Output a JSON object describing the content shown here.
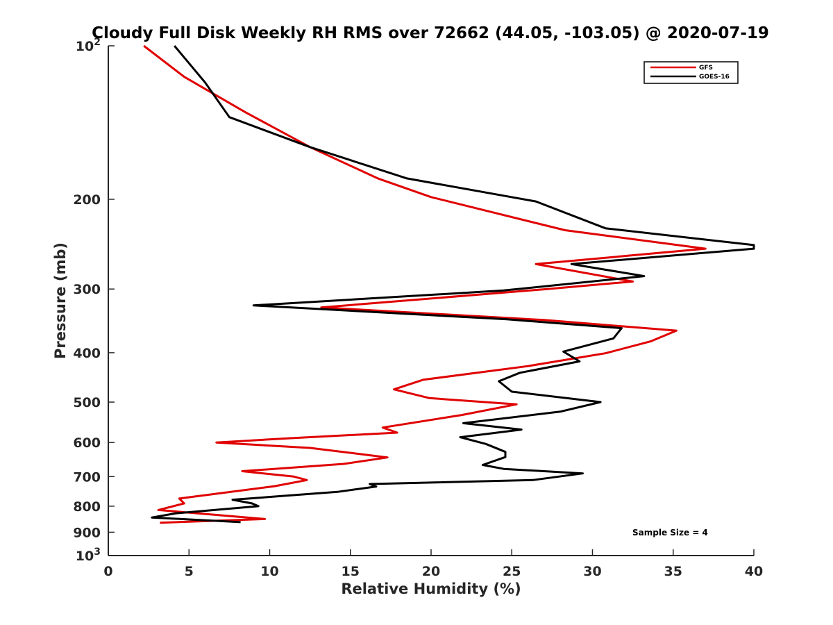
{
  "chart_data": {
    "type": "line",
    "title": "Cloudy Full Disk Weekly RH RMS over 72662 (44.05, -103.05) @ 2020-07-19",
    "xlabel": "Relative Humidity (%)",
    "ylabel": "Pressure (mb)",
    "xlim": [
      0,
      40
    ],
    "ylim": [
      1000,
      100
    ],
    "yscale": "log",
    "y_reversed": true,
    "grid": false,
    "legend_position": "top-right",
    "x_ticks": [
      "0",
      "5",
      "10",
      "15",
      "20",
      "25",
      "30",
      "35",
      "40"
    ],
    "y_ticks": [
      {
        "value": 100,
        "base": "10",
        "exp": "2"
      },
      {
        "value": 200,
        "label": "200"
      },
      {
        "value": 300,
        "label": "300"
      },
      {
        "value": 400,
        "label": "400"
      },
      {
        "value": 500,
        "label": "500"
      },
      {
        "value": 600,
        "label": "600"
      },
      {
        "value": 700,
        "label": "700"
      },
      {
        "value": 800,
        "label": "800"
      },
      {
        "value": 900,
        "label": "900"
      },
      {
        "value": 1000,
        "base": "10",
        "exp": "3"
      }
    ],
    "annotation": "Sample Size = 4",
    "series": [
      {
        "name": "GFS",
        "color": "#e00000",
        "points": [
          [
            2.2,
            100
          ],
          [
            4.7,
            115
          ],
          [
            8.5,
            135
          ],
          [
            12.5,
            158
          ],
          [
            16.7,
            182
          ],
          [
            20,
            198
          ],
          [
            28.3,
            230
          ],
          [
            37,
            250
          ],
          [
            26.5,
            268
          ],
          [
            32.5,
            290
          ],
          [
            27.2,
            300
          ],
          [
            13.2,
            326
          ],
          [
            27,
            345
          ],
          [
            35.2,
            362
          ],
          [
            33.6,
            380
          ],
          [
            30.8,
            401
          ],
          [
            26,
            425
          ],
          [
            19.5,
            452
          ],
          [
            17.7,
            472
          ],
          [
            19.9,
            491
          ],
          [
            25.3,
            505
          ],
          [
            21.9,
            530
          ],
          [
            17,
            561
          ],
          [
            17.9,
            574
          ],
          [
            11.5,
            588
          ],
          [
            6.7,
            600
          ],
          [
            12.5,
            615
          ],
          [
            17.3,
            642
          ],
          [
            14.6,
            661
          ],
          [
            8.3,
            683
          ],
          [
            11.5,
            700
          ],
          [
            12.3,
            711
          ],
          [
            10.3,
            731
          ],
          [
            4.4,
            773
          ],
          [
            4.7,
            790
          ],
          [
            3.1,
            814
          ],
          [
            9.7,
            848
          ],
          [
            3.2,
            862
          ]
        ]
      },
      {
        "name": "GOES-16",
        "color": "#000000",
        "points": [
          [
            4.1,
            100
          ],
          [
            6,
            118
          ],
          [
            7.5,
            138
          ],
          [
            12.5,
            158
          ],
          [
            18.5,
            182
          ],
          [
            26.5,
            202
          ],
          [
            30.8,
            228
          ],
          [
            40,
            246
          ],
          [
            40,
            250
          ],
          [
            28.7,
            268
          ],
          [
            33.2,
            283
          ],
          [
            24.5,
            302
          ],
          [
            9,
            323
          ],
          [
            24.7,
            344
          ],
          [
            31.8,
            358
          ],
          [
            31.3,
            375
          ],
          [
            28.2,
            398
          ],
          [
            29.2,
            416
          ],
          [
            25.5,
            438
          ],
          [
            24.2,
            455
          ],
          [
            25,
            477
          ],
          [
            30.5,
            500
          ],
          [
            28,
            522
          ],
          [
            22,
            550
          ],
          [
            25.6,
            566
          ],
          [
            21.8,
            586
          ],
          [
            23.4,
            604
          ],
          [
            24.6,
            626
          ],
          [
            24.6,
            641
          ],
          [
            23.2,
            664
          ],
          [
            24.5,
            676
          ],
          [
            29.4,
            690
          ],
          [
            26.3,
            711
          ],
          [
            16.2,
            724
          ],
          [
            16.6,
            732
          ],
          [
            14.2,
            750
          ],
          [
            7.7,
            777
          ],
          [
            8.9,
            790
          ],
          [
            9.3,
            800
          ],
          [
            4.2,
            826
          ],
          [
            2.7,
            842
          ],
          [
            8.2,
            860
          ]
        ]
      }
    ]
  }
}
